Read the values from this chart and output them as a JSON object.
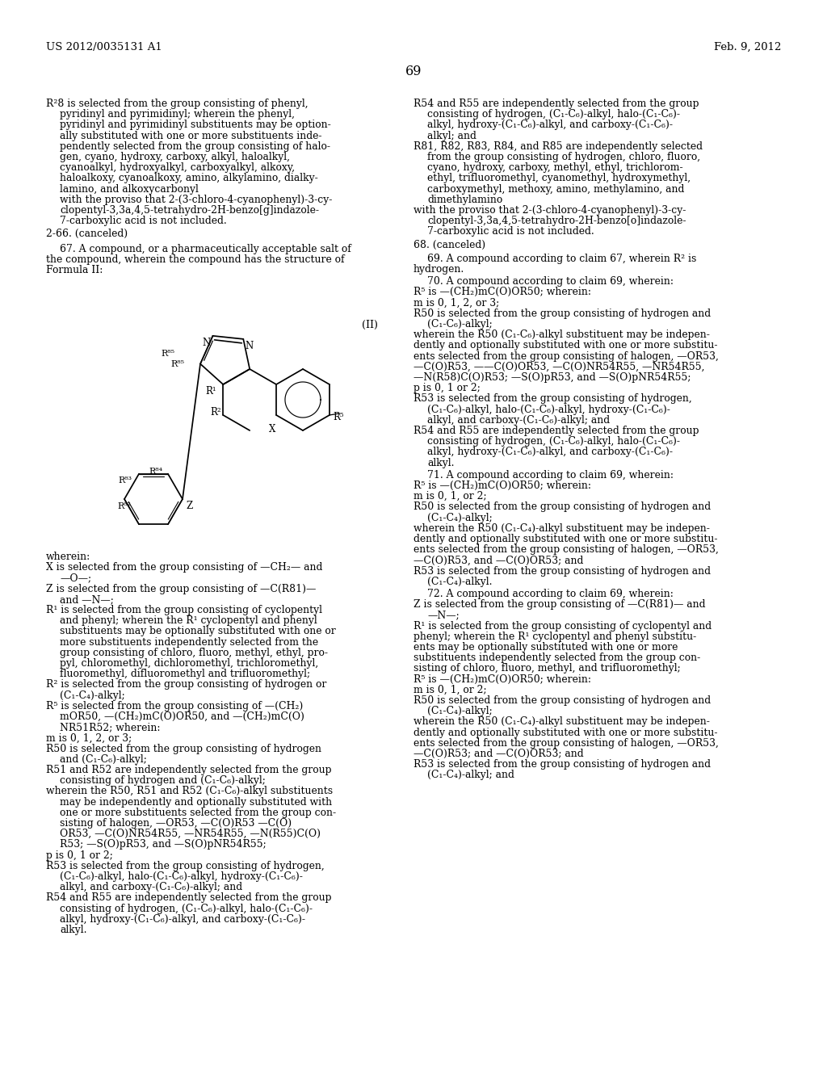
{
  "bg": "#ffffff",
  "header_left": "US 2012/0035131 A1",
  "header_right": "Feb. 9, 2012",
  "page_num": "69",
  "lh": 13.2,
  "lc": 57,
  "ind": 74,
  "rc": 512,
  "rind": 529,
  "left_top": [
    [
      "57",
      "R²8 is selected from the group consisting of phenyl,"
    ],
    [
      "74",
      "pyridinyl and pyrimidinyl; wherein the phenyl,"
    ],
    [
      "74",
      "pyridinyl and pyrimidinyl substituents may be option-"
    ],
    [
      "74",
      "ally substituted with one or more substituents inde-"
    ],
    [
      "74",
      "pendently selected from the group consisting of halo-"
    ],
    [
      "74",
      "gen, cyano, hydroxy, carboxy, alkyl, haloalkyl,"
    ],
    [
      "74",
      "cyanoalkyl, hydroxyalkyl, carboxyalkyl, alkoxy,"
    ],
    [
      "74",
      "haloalkoxy, cyanoalkoxy, amino, alkylamino, dialky-"
    ],
    [
      "74",
      "lamino, and alkoxycarbonyl"
    ],
    [
      "74",
      "with the proviso that 2-(3-chloro-4-cyanophenyl)-3-cy-"
    ],
    [
      "74",
      "clopentyl-3,3a,4,5-tetrahydro-2H-benzo[g]indazole-"
    ],
    [
      "74",
      "7-carboxylic acid is not included."
    ]
  ],
  "left_mid": [
    [
      "57",
      "2-66. (canceled)"
    ]
  ],
  "left_claim67": [
    [
      "74",
      "67. A compound, or a pharmaceutically acceptable salt of"
    ],
    [
      "57",
      "the compound, wherein the compound has the structure of"
    ],
    [
      "57",
      "Formula II:"
    ]
  ],
  "left_wherein": [
    [
      "57",
      "wherein:"
    ],
    [
      "57",
      "X is selected from the group consisting of —CH₂— and"
    ],
    [
      "74",
      "—O—;"
    ],
    [
      "57",
      "Z is selected from the group consisting of —C(R81)—"
    ],
    [
      "74",
      "and —N—;"
    ],
    [
      "57",
      "R¹ is selected from the group consisting of cyclopentyl"
    ],
    [
      "74",
      "and phenyl; wherein the R¹ cyclopentyl and phenyl"
    ],
    [
      "74",
      "substituents may be optionally substituted with one or"
    ],
    [
      "74",
      "more substituents independently selected from the"
    ],
    [
      "74",
      "group consisting of chloro, fluoro, methyl, ethyl, pro-"
    ],
    [
      "74",
      "pyl, chloromethyl, dichloromethyl, trichloromethyl,"
    ],
    [
      "74",
      "fluoromethyl, difluoromethyl and trifluoromethyl;"
    ],
    [
      "57",
      "R² is selected from the group consisting of hydrogen or"
    ],
    [
      "74",
      "(C₁-C₄)-alkyl;"
    ],
    [
      "57",
      "R⁵ is selected from the group consisting of —(CH₂)"
    ],
    [
      "74",
      "mOR50, —(CH₂)mC(O)OR50, and —(CH₂)mC(O)"
    ],
    [
      "74",
      "NR51R52; wherein:"
    ],
    [
      "57",
      "m is 0, 1, 2, or 3;"
    ],
    [
      "57",
      "R50 is selected from the group consisting of hydrogen"
    ],
    [
      "74",
      "and (C₁-C₆)-alkyl;"
    ],
    [
      "57",
      "R51 and R52 are independently selected from the group"
    ],
    [
      "74",
      "consisting of hydrogen and (C₁-C₆)-alkyl;"
    ],
    [
      "57",
      "wherein the R50, R51 and R52 (C₁-C₆)-alkyl substituents"
    ],
    [
      "74",
      "may be independently and optionally substituted with"
    ],
    [
      "74",
      "one or more substituents selected from the group con-"
    ],
    [
      "74",
      "sisting of halogen, —OR53, —C(O)R53 —C(O)"
    ],
    [
      "74",
      "OR53, —C(O)NR54R55, —NR54R55, —N(R55)C(O)"
    ],
    [
      "74",
      "R53; —S(O)pR53, and —S(O)pNR54R55;"
    ],
    [
      "57",
      "p is 0, 1 or 2;"
    ],
    [
      "57",
      "R53 is selected from the group consisting of hydrogen,"
    ],
    [
      "74",
      "(C₁-C₆)-alkyl, halo-(C₁-C₆)-alkyl, hydroxy-(C₁-C₆)-"
    ],
    [
      "74",
      "alkyl, and carboxy-(C₁-C₆)-alkyl; and"
    ],
    [
      "57",
      "R54 and R55 are independently selected from the group"
    ],
    [
      "74",
      "consisting of hydrogen, (C₁-C₆)-alkyl, halo-(C₁-C₆)-"
    ],
    [
      "74",
      "alkyl, hydroxy-(C₁-C₆)-alkyl, and carboxy-(C₁-C₆)-"
    ],
    [
      "74",
      "alkyl."
    ]
  ],
  "right_top": [
    [
      "512",
      "R54 and R55 are independently selected from the group"
    ],
    [
      "529",
      "consisting of hydrogen, (C₁-C₆)-alkyl, halo-(C₁-C₆)-"
    ],
    [
      "529",
      "alkyl, hydroxy-(C₁-C₆)-alkyl, and carboxy-(C₁-C₆)-"
    ],
    [
      "529",
      "alkyl; and"
    ],
    [
      "512",
      "R81, R82, R83, R84, and R85 are independently selected"
    ],
    [
      "529",
      "from the group consisting of hydrogen, chloro, fluoro,"
    ],
    [
      "529",
      "cyano, hydroxy, carboxy, methyl, ethyl, trichlorom-"
    ],
    [
      "529",
      "ethyl, trifluoromethyl, cyanomethyl, hydroxymethyl,"
    ],
    [
      "529",
      "carboxymethyl, methoxy, amino, methylamino, and"
    ],
    [
      "529",
      "dimethylamino"
    ],
    [
      "512",
      "with the proviso that 2-(3-chloro-4-cyanophenyl)-3-cy-"
    ],
    [
      "529",
      "clopentyl-3,3a,4,5-tetrahydro-2H-benzo[o]indazole-"
    ],
    [
      "529",
      "7-carboxylic acid is not included."
    ]
  ],
  "right_68": [
    "512",
    "68. (canceled)"
  ],
  "right_69": [
    [
      "529",
      "69. A compound according to claim 67, wherein R² is"
    ],
    [
      "512",
      "hydrogen."
    ]
  ],
  "right_70_header": [
    "529",
    "70. A compound according to claim 69, wherein:"
  ],
  "right_70": [
    [
      "512",
      "R⁵ is —(CH₂)mC(O)OR50; wherein:"
    ],
    [
      "512",
      "m is 0, 1, 2, or 3;"
    ],
    [
      "512",
      "R50 is selected from the group consisting of hydrogen and"
    ],
    [
      "529",
      "(C₁-C₆)-alkyl;"
    ],
    [
      "512",
      "wherein the R50 (C₁-C₆)-alkyl substituent may be indepen-"
    ],
    [
      "512",
      "dently and optionally substituted with one or more substitu-"
    ],
    [
      "512",
      "ents selected from the group consisting of halogen, —OR53,"
    ],
    [
      "512",
      "—C(O)R53, ——C(O)OR53, —C(O)NR54R55, —NR54R55,"
    ],
    [
      "512",
      "—N(R58)C(O)R53; —S(O)pR53, and —S(O)pNR54R55;"
    ],
    [
      "512",
      "p is 0, 1 or 2;"
    ],
    [
      "512",
      "R53 is selected from the group consisting of hydrogen,"
    ],
    [
      "529",
      "(C₁-C₆)-alkyl, halo-(C₁-C₆)-alkyl, hydroxy-(C₁-C₆)-"
    ],
    [
      "529",
      "alkyl, and carboxy-(C₁-C₆)-alkyl; and"
    ],
    [
      "512",
      "R54 and R55 are independently selected from the group"
    ],
    [
      "529",
      "consisting of hydrogen, (C₁-C₆)-alkyl, halo-(C₁-C₆)-"
    ],
    [
      "529",
      "alkyl, hydroxy-(C₁-C₆)-alkyl, and carboxy-(C₁-C₆)-"
    ],
    [
      "529",
      "alkyl."
    ]
  ],
  "right_71_header": [
    "529",
    "71. A compound according to claim 69, wherein:"
  ],
  "right_71": [
    [
      "512",
      "R⁵ is —(CH₂)mC(O)OR50; wherein:"
    ],
    [
      "512",
      "m is 0, 1, or 2;"
    ],
    [
      "512",
      "R50 is selected from the group consisting of hydrogen and"
    ],
    [
      "529",
      "(C₁-C₄)-alkyl;"
    ],
    [
      "512",
      "wherein the R50 (C₁-C₄)-alkyl substituent may be indepen-"
    ],
    [
      "512",
      "dently and optionally substituted with one or more substitu-"
    ],
    [
      "512",
      "ents selected from the group consisting of halogen, —OR53,"
    ],
    [
      "512",
      "—C(O)R53, and —C(O)OR53; and"
    ],
    [
      "512",
      "R53 is selected from the group consisting of hydrogen and"
    ],
    [
      "529",
      "(C₁-C₄)-alkyl."
    ]
  ],
  "right_72_header": [
    "529",
    "72. A compound according to claim 69, wherein:"
  ],
  "right_72": [
    [
      "512",
      "Z is selected from the group consisting of —C(R81)— and"
    ],
    [
      "529",
      "—N—;"
    ],
    [
      "512",
      "R¹ is selected from the group consisting of cyclopentyl and"
    ],
    [
      "512",
      "phenyl; wherein the R¹ cyclopentyl and phenyl substitu-"
    ],
    [
      "512",
      "ents may be optionally substituted with one or more"
    ],
    [
      "512",
      "substituents independently selected from the group con-"
    ],
    [
      "512",
      "sisting of chloro, fluoro, methyl, and trifluoromethyl;"
    ],
    [
      "512",
      "R⁵ is —(CH₂)mC(O)OR50; wherein:"
    ],
    [
      "512",
      "m is 0, 1, or 2;"
    ],
    [
      "512",
      "R50 is selected from the group consisting of hydrogen and"
    ],
    [
      "529",
      "(C₁-C₄)-alkyl;"
    ],
    [
      "512",
      "wherein the R50 (C₁-C₄)-alkyl substituent may be indepen-"
    ],
    [
      "512",
      "dently and optionally substituted with one or more substitu-"
    ],
    [
      "512",
      "ents selected from the group consisting of halogen, —OR53,"
    ],
    [
      "512",
      "—C(O)R53; and —C(O)OR53; and"
    ],
    [
      "512",
      "R53 is selected from the group consisting of hydrogen and"
    ],
    [
      "529",
      "(C₁-C₄)-alkyl; and"
    ]
  ]
}
